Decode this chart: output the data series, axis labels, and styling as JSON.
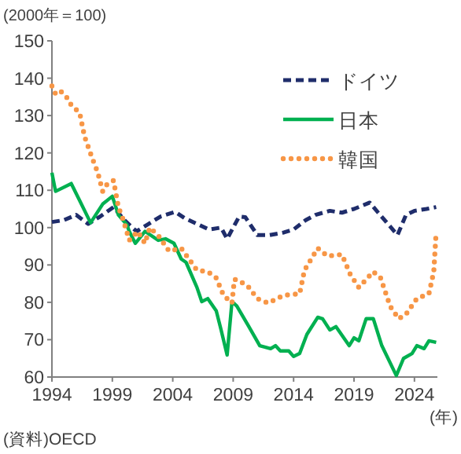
{
  "chart_data": {
    "type": "line",
    "ylabel": "(2000年＝100)",
    "xlabel": "(年)",
    "annotations": [
      "(資料)OECD"
    ],
    "xlim": [
      1994,
      2025.9
    ],
    "ylim": [
      60,
      150
    ],
    "xticks": [
      1994,
      1999,
      2004,
      2009,
      2014,
      2019,
      2024
    ],
    "yticks": [
      60,
      70,
      80,
      90,
      100,
      110,
      120,
      130,
      140,
      150
    ],
    "legend": "top right",
    "series": [
      {
        "name": "ドイツ",
        "color": "#1f2d6b",
        "line_style": "dashed",
        "x": [
          1994,
          1995,
          1996,
          1997,
          1998,
          1999.1,
          2000,
          2001,
          2002,
          2003,
          2004.2,
          2005,
          2006,
          2007,
          2008,
          2008.5,
          2009.5,
          2010,
          2011,
          2012,
          2013.2,
          2014,
          2015,
          2015.8,
          2017,
          2018,
          2019,
          2020.3,
          2021,
          2022.6,
          2023.3,
          2024,
          2025,
          2025.8
        ],
        "values": [
          101.5,
          102,
          103.4,
          101,
          103,
          105.5,
          102,
          99,
          101,
          103,
          104.2,
          102.5,
          101,
          99.5,
          100,
          97,
          103,
          102.8,
          98,
          98,
          98.7,
          99.5,
          102,
          103.4,
          104.5,
          104,
          105,
          106.7,
          104,
          98,
          103.4,
          104.5,
          105,
          105.5
        ]
      },
      {
        "name": "日本",
        "color": "#00b050",
        "line_style": "solid",
        "x": [
          1994,
          1994.3,
          1995.6,
          1997.2,
          1998.2,
          1999,
          1999.5,
          2000.2,
          2000.4,
          2000.9,
          2001.7,
          2002.8,
          2003.4,
          2004.1,
          2004.7,
          2005.1,
          2006,
          2006.4,
          2006.9,
          2007.6,
          2008,
          2008.5,
          2008.9,
          2009.3,
          2010.3,
          2011.2,
          2012.1,
          2012.5,
          2012.9,
          2013.6,
          2014,
          2014.5,
          2015.1,
          2016,
          2016.4,
          2017,
          2017.5,
          2018.6,
          2019,
          2019.4,
          2020,
          2020.6,
          2021.3,
          2022.5,
          2023.1,
          2023.8,
          2024.2,
          2024.8,
          2025.2,
          2025.8
        ],
        "values": [
          114.7,
          109.7,
          111.8,
          101.3,
          106.3,
          108.4,
          103.4,
          100.8,
          99,
          95.8,
          99,
          96.6,
          97,
          95.8,
          91.6,
          90.7,
          84,
          80.2,
          81,
          77.7,
          72.6,
          65.9,
          80.2,
          79,
          73.5,
          68.4,
          67.6,
          68.4,
          67,
          67,
          65.5,
          66.3,
          71.4,
          76,
          75.6,
          72.6,
          73.5,
          68.4,
          70.5,
          69.7,
          75.6,
          75.6,
          68.4,
          60.4,
          65,
          66.3,
          68.4,
          67.6,
          69.7,
          69.3
        ]
      },
      {
        "name": "韓国",
        "color": "#f79646",
        "line_style": "dotted",
        "x": [
          1994,
          1994.3,
          1994.7,
          1995.2,
          1995.6,
          1996.3,
          1996.7,
          1997.3,
          1997.8,
          1998.2,
          1998.6,
          1999.1,
          1999.5,
          1999.9,
          2000.4,
          2001.1,
          2001.7,
          2002.1,
          2002.8,
          2003.7,
          2004.7,
          2006,
          2006.9,
          2007.6,
          2008.2,
          2008.9,
          2009.1,
          2009.3,
          2010.2,
          2011,
          2011.9,
          2013.2,
          2014.5,
          2014.9,
          2016,
          2016.8,
          2018,
          2018.7,
          2019.4,
          2020.6,
          2021.2,
          2022,
          2022.7,
          2023.3,
          2024.2,
          2025.2,
          2025.6,
          2025.8
        ],
        "values": [
          137.9,
          135.8,
          136.6,
          135,
          132.8,
          130.7,
          124.4,
          118.9,
          114.7,
          109.7,
          111.8,
          112.6,
          105.5,
          102.1,
          96.6,
          99,
          95.8,
          100,
          97.9,
          93.7,
          94.5,
          88.6,
          88.2,
          86.5,
          81.9,
          79.8,
          86.1,
          86.1,
          84.4,
          81,
          79.8,
          81.9,
          82.3,
          88.6,
          94.5,
          92.4,
          92.8,
          87.4,
          84,
          88.2,
          86.5,
          78.9,
          75.6,
          76.8,
          81,
          82.3,
          88.2,
          99
        ]
      }
    ]
  }
}
